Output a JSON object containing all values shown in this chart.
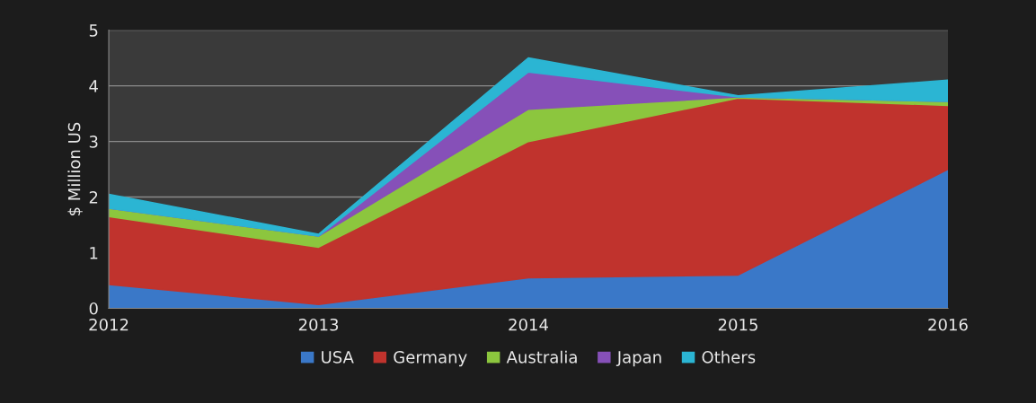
{
  "chart_data": {
    "type": "area",
    "stacked": true,
    "ylabel": "$ Million US",
    "x": [
      "2012",
      "2013",
      "2014",
      "2015",
      "2016"
    ],
    "xlim": [
      "2012",
      "2016"
    ],
    "xticks": [
      {
        "value": "2012",
        "label": "2012"
      },
      {
        "value": "2013",
        "label": "2013"
      },
      {
        "value": "2014",
        "label": "2014"
      },
      {
        "value": "2015",
        "label": "2015"
      },
      {
        "value": "2016",
        "label": "2016"
      }
    ],
    "ylim": [
      0,
      5
    ],
    "yticks": [
      0,
      1,
      2,
      3,
      4,
      5
    ],
    "grid": "y",
    "legend": "bottom",
    "series": [
      {
        "name": "USA",
        "color": "#3a78c8",
        "values": [
          0.43,
          0.07,
          0.55,
          0.6,
          2.5
        ]
      },
      {
        "name": "Germany",
        "color": "#c0332d",
        "values": [
          1.22,
          1.03,
          2.45,
          3.18,
          1.15
        ]
      },
      {
        "name": "Australia",
        "color": "#8cc63e",
        "values": [
          0.15,
          0.2,
          0.58,
          0.02,
          0.07
        ]
      },
      {
        "name": "Japan",
        "color": "#8650b8",
        "values": [
          0,
          0,
          0.67,
          0,
          0
        ]
      },
      {
        "name": "Others",
        "color": "#2bb5d3",
        "values": [
          0.25,
          0.03,
          0.25,
          0.02,
          0.38
        ]
      }
    ]
  }
}
